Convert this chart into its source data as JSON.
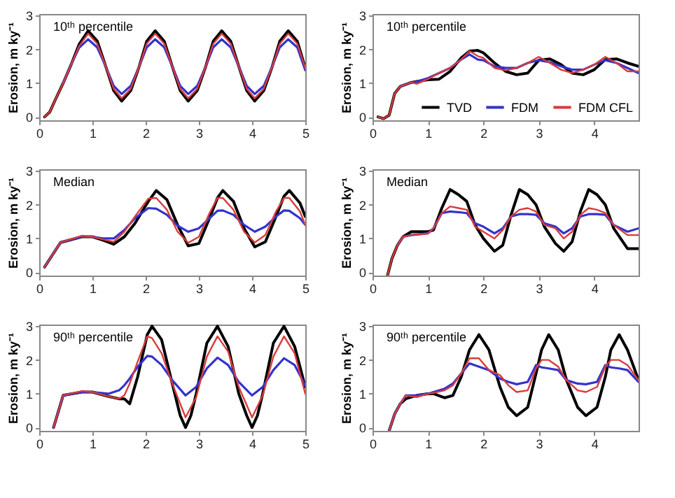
{
  "chart_data": [
    {
      "type": "line",
      "ylabel": "Erosion, m ky⁻¹",
      "annotations": [
        "10ᵗʰ percentile"
      ],
      "xlim": [
        0,
        5
      ],
      "xticks": [
        0,
        1,
        2,
        3,
        4,
        5
      ],
      "ylim": [
        -0.1,
        3.05
      ],
      "yticks": [
        0,
        1,
        2,
        3
      ],
      "grid": false,
      "legend": false,
      "x": [
        0.1,
        0.2,
        0.3,
        0.45,
        0.6,
        0.75,
        0.92,
        1.09,
        1.25,
        1.4,
        1.55,
        1.72,
        1.88,
        2.02,
        2.18,
        2.35,
        2.5,
        2.65,
        2.8,
        2.97,
        3.13,
        3.27,
        3.43,
        3.6,
        3.75,
        3.9,
        4.05,
        4.22,
        4.38,
        4.52,
        4.68,
        4.85,
        5.0
      ],
      "series": [
        {
          "color": "#000000",
          "values": [
            0,
            0.15,
            0.5,
            1.0,
            1.55,
            2.15,
            2.55,
            2.25,
            1.5,
            0.78,
            0.47,
            0.78,
            1.5,
            2.24,
            2.55,
            2.24,
            1.5,
            0.78,
            0.47,
            0.78,
            1.5,
            2.24,
            2.55,
            2.24,
            1.5,
            0.78,
            0.47,
            0.78,
            1.5,
            2.24,
            2.55,
            2.24,
            1.45
          ]
        },
        {
          "color": "#3333cc",
          "values": [
            null,
            null,
            null,
            1.0,
            1.55,
            2.05,
            2.3,
            2.06,
            1.5,
            0.92,
            0.68,
            0.92,
            1.5,
            2.06,
            2.3,
            2.06,
            1.5,
            0.92,
            0.68,
            0.92,
            1.5,
            2.06,
            2.3,
            2.06,
            1.5,
            0.92,
            0.68,
            0.92,
            1.5,
            2.06,
            2.3,
            2.06,
            1.38
          ]
        },
        {
          "color": "#d93b3b",
          "values": [
            0,
            0.15,
            0.5,
            1.0,
            1.55,
            2.1,
            2.47,
            2.17,
            1.5,
            0.83,
            0.55,
            0.83,
            1.5,
            2.17,
            2.47,
            2.17,
            1.5,
            0.83,
            0.55,
            0.83,
            1.5,
            2.17,
            2.47,
            2.17,
            1.5,
            0.83,
            0.55,
            0.83,
            1.5,
            2.17,
            2.47,
            2.17,
            1.45
          ]
        }
      ]
    },
    {
      "type": "line",
      "ylabel": "Erosion, m ky⁻¹",
      "annotations": [
        "10ᵗʰ percentile"
      ],
      "xlim": [
        0,
        4.8
      ],
      "xticks": [
        0,
        1,
        2,
        3,
        4
      ],
      "ylim": [
        -0.1,
        3.05
      ],
      "yticks": [
        0,
        1,
        2,
        3
      ],
      "grid": false,
      "legend": "bottom right",
      "x": [
        0.1,
        0.2,
        0.3,
        0.4,
        0.5,
        0.7,
        0.8,
        1.0,
        1.2,
        1.4,
        1.6,
        1.75,
        1.9,
        2.0,
        2.2,
        2.4,
        2.6,
        2.8,
        3.0,
        3.2,
        3.4,
        3.6,
        3.8,
        4.0,
        4.2,
        4.4,
        4.6,
        4.8
      ],
      "series": [
        {
          "name": "TVD",
          "color": "#000000",
          "values": [
            0,
            -0.05,
            0.05,
            0.7,
            0.9,
            1.02,
            1.05,
            1.1,
            1.12,
            1.35,
            1.75,
            1.95,
            1.97,
            1.9,
            1.6,
            1.35,
            1.25,
            1.3,
            1.68,
            1.72,
            1.55,
            1.3,
            1.25,
            1.4,
            1.7,
            1.72,
            1.6,
            1.5
          ]
        },
        {
          "name": "FDM",
          "color": "#3333cc",
          "values": [
            null,
            null,
            null,
            null,
            0.9,
            1.02,
            1.05,
            1.15,
            1.3,
            1.45,
            1.7,
            1.85,
            1.7,
            1.68,
            1.5,
            1.45,
            1.45,
            1.6,
            1.68,
            1.62,
            1.5,
            1.4,
            1.4,
            1.55,
            1.68,
            1.6,
            1.45,
            1.3
          ]
        },
        {
          "name": "FDM CFL",
          "color": "#d93b3b",
          "values": [
            0,
            -0.05,
            0.05,
            0.7,
            0.9,
            1.02,
            0.98,
            1.12,
            1.3,
            1.45,
            1.7,
            1.95,
            1.8,
            1.75,
            1.45,
            1.38,
            1.45,
            1.6,
            1.78,
            1.6,
            1.4,
            1.3,
            1.4,
            1.55,
            1.78,
            1.6,
            1.35,
            1.35
          ]
        }
      ]
    },
    {
      "type": "line",
      "ylabel": "Erosion, m ky⁻¹",
      "annotations": [
        "Median"
      ],
      "xlim": [
        0,
        5
      ],
      "xticks": [
        0,
        1,
        2,
        3,
        4,
        5
      ],
      "ylim": [
        -0.1,
        3.05
      ],
      "yticks": [
        0,
        1,
        2,
        3
      ],
      "grid": false,
      "legend": false,
      "x": [
        0.1,
        0.4,
        0.8,
        1.0,
        1.2,
        1.4,
        1.6,
        1.8,
        2.05,
        2.2,
        2.4,
        2.6,
        2.8,
        3.0,
        3.2,
        3.35,
        3.45,
        3.65,
        3.85,
        4.05,
        4.25,
        4.45,
        4.6,
        4.7,
        4.9,
        5.0
      ],
      "series": [
        {
          "color": "#000000",
          "values": [
            0.15,
            0.88,
            1.05,
            1.05,
            0.95,
            0.83,
            1.05,
            1.45,
            2.1,
            2.42,
            2.15,
            1.4,
            0.78,
            0.85,
            1.6,
            2.2,
            2.42,
            2.1,
            1.3,
            0.75,
            0.9,
            1.65,
            2.25,
            2.42,
            2.05,
            1.65
          ]
        },
        {
          "color": "#3333cc",
          "values": [
            0.15,
            0.88,
            1.05,
            1.05,
            1.0,
            1.0,
            1.25,
            1.6,
            1.9,
            1.88,
            1.7,
            1.38,
            1.2,
            1.3,
            1.6,
            1.82,
            1.83,
            1.7,
            1.4,
            1.2,
            1.35,
            1.65,
            1.83,
            1.82,
            1.6,
            1.4
          ]
        },
        {
          "color": "#d93b3b",
          "values": [
            0.15,
            0.88,
            1.08,
            1.05,
            0.97,
            0.9,
            1.2,
            1.65,
            2.18,
            2.2,
            1.85,
            1.2,
            0.87,
            1.05,
            1.75,
            2.2,
            2.2,
            1.85,
            1.2,
            0.88,
            1.1,
            1.8,
            2.2,
            2.2,
            1.8,
            1.4
          ]
        }
      ]
    },
    {
      "type": "line",
      "ylabel": "Erosion, m ky⁻¹",
      "annotations": [
        "Median"
      ],
      "xlim": [
        0,
        4.8
      ],
      "xticks": [
        0,
        1,
        2,
        3,
        4
      ],
      "ylim": [
        -0.1,
        3.05
      ],
      "yticks": [
        0,
        1,
        2,
        3
      ],
      "grid": false,
      "legend": false,
      "x": [
        0.27,
        0.35,
        0.45,
        0.55,
        0.7,
        1.0,
        1.1,
        1.25,
        1.4,
        1.55,
        1.7,
        1.85,
        2.0,
        2.2,
        2.35,
        2.5,
        2.65,
        2.8,
        2.95,
        3.1,
        3.3,
        3.45,
        3.6,
        3.75,
        3.9,
        4.05,
        4.2,
        4.35,
        4.6,
        4.8
      ],
      "series": [
        {
          "color": "#000000",
          "values": [
            -0.1,
            0.4,
            0.8,
            1.05,
            1.2,
            1.2,
            1.25,
            1.9,
            2.45,
            2.3,
            2.1,
            1.4,
            1.0,
            0.62,
            0.8,
            1.7,
            2.45,
            2.3,
            2.0,
            1.35,
            0.85,
            0.62,
            0.9,
            1.8,
            2.45,
            2.3,
            2.0,
            1.3,
            0.7,
            0.7
          ]
        },
        {
          "color": "#3333cc",
          "values": [
            null,
            null,
            0.8,
            1.05,
            1.1,
            1.15,
            1.3,
            1.75,
            1.8,
            1.78,
            1.75,
            1.45,
            1.35,
            1.15,
            1.3,
            1.65,
            1.72,
            1.72,
            1.7,
            1.45,
            1.35,
            1.15,
            1.3,
            1.65,
            1.72,
            1.72,
            1.7,
            1.4,
            1.2,
            1.3
          ]
        },
        {
          "color": "#d93b3b",
          "values": [
            -0.1,
            0.4,
            0.8,
            1.05,
            1.1,
            1.15,
            1.3,
            1.75,
            1.95,
            1.9,
            1.85,
            1.35,
            1.2,
            1.0,
            1.25,
            1.65,
            1.85,
            1.9,
            1.8,
            1.4,
            1.3,
            1.0,
            1.2,
            1.7,
            1.9,
            1.85,
            1.75,
            1.4,
            1.1,
            1.1
          ]
        }
      ]
    },
    {
      "type": "line",
      "ylabel": "Erosion, m ky⁻¹",
      "annotations": [
        "90ᵗʰ percentile"
      ],
      "xlim": [
        0,
        5
      ],
      "xticks": [
        0,
        1,
        2,
        3,
        4,
        5
      ],
      "ylim": [
        -0.1,
        3.05
      ],
      "yticks": [
        0,
        1,
        2,
        3
      ],
      "grid": false,
      "legend": false,
      "x": [
        0.27,
        0.45,
        0.8,
        1.0,
        1.3,
        1.5,
        1.6,
        1.7,
        1.85,
        2.03,
        2.12,
        2.3,
        2.5,
        2.75,
        2.95,
        3.15,
        3.35,
        3.55,
        3.75,
        4.0,
        4.2,
        4.4,
        4.6,
        4.8,
        5.0
      ],
      "series": [
        {
          "color": "#000000",
          "x": [
            0.27,
            0.45,
            0.8,
            1.0,
            1.3,
            1.5,
            1.6,
            1.7,
            1.85,
            2.03,
            2.12,
            2.3,
            2.5,
            2.65,
            2.75,
            2.85,
            2.95,
            3.15,
            3.35,
            3.55,
            3.75,
            3.9,
            4.0,
            4.1,
            4.2,
            4.4,
            4.6,
            4.8,
            5.0
          ],
          "values": [
            0,
            0.95,
            1.05,
            1.05,
            0.92,
            0.85,
            0.85,
            0.7,
            1.5,
            2.75,
            3.0,
            2.6,
            1.3,
            0.35,
            0.0,
            0.35,
            1.0,
            2.5,
            3.0,
            2.4,
            1.0,
            0.35,
            0.0,
            0.35,
            1.0,
            2.5,
            3.0,
            2.4,
            1.2
          ]
        },
        {
          "color": "#3333cc",
          "values": [
            0,
            0.95,
            1.05,
            1.05,
            1.0,
            1.1,
            1.25,
            1.45,
            1.8,
            2.12,
            2.1,
            1.85,
            1.4,
            0.95,
            1.2,
            1.75,
            2.07,
            1.85,
            1.35,
            0.95,
            1.2,
            1.7,
            2.05,
            1.85,
            1.25
          ]
        },
        {
          "color": "#d93b3b",
          "values": [
            0,
            0.95,
            1.08,
            1.05,
            0.92,
            0.85,
            0.95,
            1.3,
            1.95,
            2.7,
            2.65,
            2.2,
            1.3,
            0.3,
            0.9,
            2.1,
            2.7,
            2.25,
            1.2,
            0.3,
            0.95,
            2.1,
            2.7,
            2.2,
            1.0
          ]
        }
      ]
    },
    {
      "type": "line",
      "ylabel": "Erosion, m ky⁻¹",
      "annotations": [
        "90ᵗʰ percentile"
      ],
      "xlim": [
        0,
        4.8
      ],
      "xticks": [
        0,
        1,
        2,
        3,
        4
      ],
      "ylim": [
        -0.1,
        3.05
      ],
      "yticks": [
        0,
        1,
        2,
        3
      ],
      "grid": false,
      "legend": false,
      "x": [
        0.3,
        0.4,
        0.5,
        0.6,
        0.8,
        1.0,
        1.1,
        1.3,
        1.45,
        1.6,
        1.75,
        1.92,
        2.1,
        2.3,
        2.45,
        2.6,
        2.8,
        2.95,
        3.05,
        3.18,
        3.35,
        3.5,
        3.7,
        3.85,
        4.05,
        4.2,
        4.3,
        4.45,
        4.6,
        4.8
      ],
      "series": [
        {
          "color": "#000000",
          "values": [
            -0.1,
            0.4,
            0.7,
            0.85,
            0.95,
            1.0,
            1.0,
            0.88,
            0.95,
            1.5,
            2.3,
            2.75,
            2.3,
            1.2,
            0.6,
            0.35,
            0.6,
            1.6,
            2.3,
            2.75,
            2.3,
            1.4,
            0.6,
            0.35,
            0.6,
            1.5,
            2.3,
            2.75,
            2.3,
            1.4
          ]
        },
        {
          "color": "#3333cc",
          "values": [
            -0.1,
            0.4,
            0.7,
            0.95,
            0.95,
            1.0,
            1.05,
            1.15,
            1.3,
            1.6,
            1.9,
            1.8,
            1.7,
            1.45,
            1.35,
            1.28,
            1.35,
            1.85,
            1.78,
            1.75,
            1.7,
            1.4,
            1.3,
            1.28,
            1.35,
            1.85,
            1.78,
            1.75,
            1.7,
            1.35
          ]
        },
        {
          "color": "#d93b3b",
          "values": [
            -0.1,
            0.4,
            0.7,
            0.95,
            0.9,
            1.0,
            1.02,
            1.1,
            1.25,
            1.6,
            2.05,
            2.05,
            1.7,
            1.55,
            1.25,
            1.05,
            1.1,
            1.75,
            2.0,
            2.0,
            1.8,
            1.4,
            1.1,
            1.05,
            1.2,
            1.8,
            2.0,
            2.0,
            1.85,
            1.4
          ]
        }
      ]
    }
  ]
}
